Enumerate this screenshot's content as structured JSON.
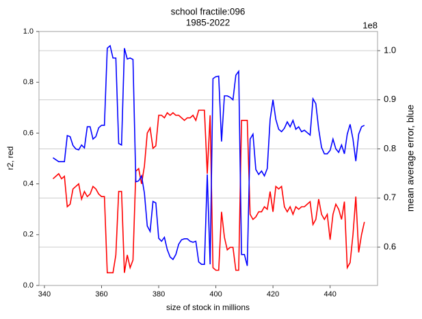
{
  "chart_data": {
    "type": "line",
    "title": "school fractile:096",
    "subtitle": "1985-2022",
    "xlabel": "size of stock in millions",
    "ylabel": "r2, red",
    "y2label": "mean average error, blue",
    "y2offset": "1e8",
    "x": [
      343,
      344,
      345,
      346,
      347,
      348,
      349,
      350,
      351,
      352,
      353,
      354,
      355,
      356,
      357,
      358,
      359,
      360,
      361,
      362,
      363,
      364,
      365,
      366,
      367,
      368,
      369,
      370,
      371,
      372,
      373,
      374,
      375,
      376,
      377,
      378,
      379,
      380,
      381,
      382,
      383,
      384,
      385,
      386,
      387,
      388,
      389,
      390,
      391,
      392,
      393,
      394,
      395,
      396,
      397,
      398,
      399,
      400,
      401,
      402,
      403,
      404,
      405,
      406,
      407,
      408,
      409,
      410,
      411,
      412,
      413,
      414,
      415,
      416,
      417,
      418,
      419,
      420,
      421,
      422,
      423,
      424,
      425,
      426,
      427,
      428,
      429,
      430,
      431,
      432,
      433,
      434,
      435,
      436,
      437,
      438,
      439,
      440,
      441,
      442,
      443,
      444,
      445,
      446,
      447,
      448,
      449,
      450,
      451,
      452
    ],
    "series": [
      {
        "color": "red",
        "values": [
          0.42,
          0.43,
          0.44,
          0.42,
          0.43,
          0.31,
          0.32,
          0.38,
          0.39,
          0.4,
          0.34,
          0.37,
          0.35,
          0.36,
          0.39,
          0.38,
          0.36,
          0.35,
          0.35,
          0.05,
          0.05,
          0.05,
          0.12,
          0.37,
          0.37,
          0.05,
          0.12,
          0.07,
          0.1,
          0.45,
          0.46,
          0.4,
          0.47,
          0.6,
          0.62,
          0.54,
          0.55,
          0.67,
          0.67,
          0.66,
          0.68,
          0.67,
          0.68,
          0.67,
          0.67,
          0.66,
          0.65,
          0.66,
          0.66,
          0.67,
          0.65,
          0.69,
          0.69,
          0.69,
          0.44,
          0.67,
          0.07,
          0.06,
          0.06,
          0.29,
          0.19,
          0.14,
          0.15,
          0.15,
          0.06,
          0.06,
          0.65,
          0.65,
          0.65,
          0.28,
          0.26,
          0.27,
          0.29,
          0.29,
          0.31,
          0.3,
          0.37,
          0.29,
          0.39,
          0.38,
          0.39,
          0.31,
          0.29,
          0.31,
          0.28,
          0.31,
          0.3,
          0.31,
          0.31,
          0.32,
          0.33,
          0.24,
          0.26,
          0.34,
          0.28,
          0.26,
          0.28,
          0.18,
          0.28,
          0.32,
          0.3,
          0.26,
          0.33,
          0.07,
          0.09,
          0.2,
          0.35,
          0.13,
          0.2,
          0.25
        ]
      },
      {
        "color": "blue",
        "axis": "y2",
        "values": [
          0.782,
          0.778,
          0.774,
          0.774,
          0.774,
          0.827,
          0.825,
          0.807,
          0.8,
          0.798,
          0.808,
          0.802,
          0.845,
          0.845,
          0.82,
          0.825,
          0.843,
          0.848,
          0.848,
          1.005,
          1.01,
          0.985,
          0.985,
          0.811,
          0.808,
          1.005,
          0.983,
          0.985,
          0.982,
          0.733,
          0.735,
          0.745,
          0.71,
          0.643,
          0.632,
          0.693,
          0.69,
          0.618,
          0.612,
          0.62,
          0.595,
          0.58,
          0.575,
          0.585,
          0.606,
          0.615,
          0.617,
          0.617,
          0.612,
          0.61,
          0.612,
          0.57,
          0.565,
          0.565,
          0.748,
          0.565,
          0.943,
          0.947,
          0.948,
          0.815,
          0.908,
          0.908,
          0.905,
          0.9,
          0.95,
          0.958,
          0.585,
          0.585,
          0.562,
          0.82,
          0.83,
          0.758,
          0.748,
          0.755,
          0.745,
          0.76,
          0.86,
          0.9,
          0.86,
          0.84,
          0.835,
          0.842,
          0.855,
          0.845,
          0.858,
          0.84,
          0.845,
          0.835,
          0.838,
          0.833,
          0.828,
          0.902,
          0.892,
          0.84,
          0.803,
          0.79,
          0.79,
          0.797,
          0.82,
          0.8,
          0.793,
          0.808,
          0.79,
          0.83,
          0.85,
          0.82,
          0.775,
          0.83,
          0.845,
          0.848
        ]
      }
    ],
    "xlim": [
      338.1,
      456.6
    ],
    "xticks": [
      340,
      360,
      380,
      400,
      420,
      440
    ],
    "ylim": [
      0,
      1
    ],
    "yticks": [
      {
        "value": 0,
        "label": "0.0"
      },
      0.2,
      0.4,
      0.6,
      0.8,
      {
        "value": 1,
        "label": "1.0"
      }
    ],
    "y2lim": [
      0.522,
      1.039
    ],
    "y2ticks": [
      0.6,
      0.7,
      0.8,
      0.9,
      {
        "value": 1,
        "label": "1.0"
      }
    ],
    "grid": "y2"
  }
}
